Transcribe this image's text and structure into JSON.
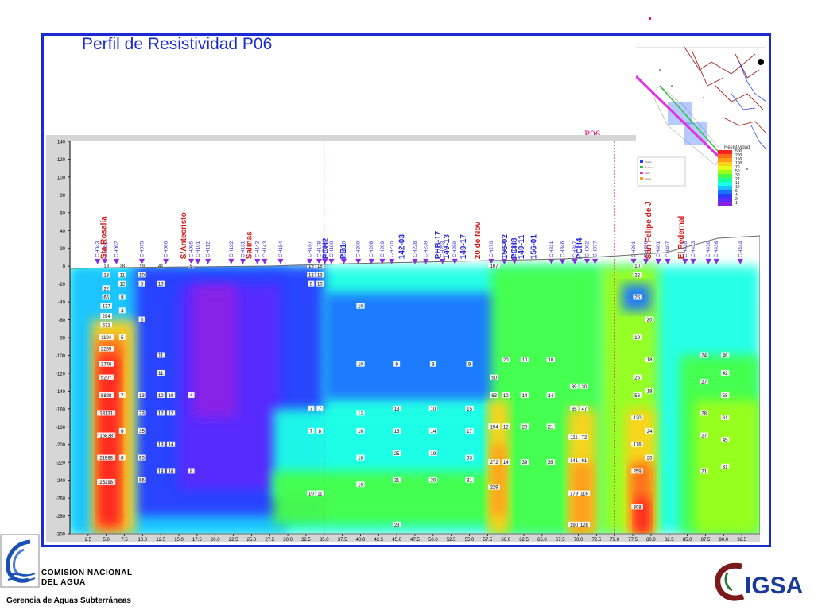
{
  "title": "Perfil de Resistividad P06",
  "profile_label": "P06",
  "footer": {
    "org_line1": "COMISION NACIONAL",
    "org_line2": "DEL  AGUA",
    "department": "Gerencia de Aguas Subterráneas",
    "partner_logo_text": "IGSA"
  },
  "legend": {
    "title": "Resistividad",
    "items": [
      "500",
      "200",
      "150",
      "100",
      "70",
      "50",
      "30",
      "22",
      "15",
      "10",
      "6",
      "4",
      "2",
      "1"
    ],
    "colors": [
      "#ff2020",
      "#ff6b1a",
      "#ff9d1a",
      "#ffd21a",
      "#e6ff1a",
      "#9cff1a",
      "#46ff4a",
      "#1aff9c",
      "#1affe6",
      "#1ac2ff",
      "#1a74ff",
      "#2a3dff",
      "#5a2bff",
      "#8a20e6"
    ]
  },
  "colors": {
    "frame": "#1a2bd6",
    "well_marker": "#8a2be2",
    "well_label": "#3a2bd6",
    "place_label": "#e0197d"
  },
  "chart_data": {
    "type": "heatmap",
    "xlabel": "",
    "ylabel": "",
    "xlim": [
      0,
      95
    ],
    "ylim": [
      -300,
      140
    ],
    "x_ticks": [
      "2.5",
      "5.0",
      "7.5",
      "10.0",
      "12.5",
      "15.0",
      "17.5",
      "20.0",
      "22.5",
      "25.0",
      "27.5",
      "30.0",
      "32.5",
      "35.0",
      "37.5",
      "40.0",
      "42.5",
      "45.0",
      "47.5",
      "50.0",
      "52.5",
      "55.0",
      "57.5",
      "60.0",
      "62.5",
      "65.0",
      "67.5",
      "70.0",
      "72.5",
      "75.0",
      "77.5",
      "80.0",
      "82.5",
      "85.0",
      "87.5",
      "90.0",
      "92.5"
    ],
    "y_ticks": [
      "140",
      "120",
      "100",
      "80",
      "60",
      "40",
      "20",
      "0",
      "-20",
      "-40",
      "-60",
      "-80",
      "-100",
      "-120",
      "-140",
      "-160",
      "-180",
      "-200",
      "-220",
      "-240",
      "-260",
      "-280",
      "-300"
    ],
    "place_labels": [
      {
        "text": "Sta Rosalía",
        "x": 5.0
      },
      {
        "text": "S/Antecristo",
        "x": 16.0
      },
      {
        "text": "Salinas",
        "x": 25.0
      },
      {
        "text": "PCH2",
        "x": 35.5
      },
      {
        "text": "PB1",
        "x": 38.0
      },
      {
        "text": "142-03",
        "x": 46.0
      },
      {
        "text": "PHB-17",
        "x": 51.0
      },
      {
        "text": "149-13",
        "x": 52.2
      },
      {
        "text": "149-17",
        "x": 54.5
      },
      {
        "text": "20 de Nov",
        "x": 56.5
      },
      {
        "text": "156-02",
        "x": 60.2
      },
      {
        "text": "PCH8",
        "x": 61.5
      },
      {
        "text": "149-11",
        "x": 62.5
      },
      {
        "text": "156-01",
        "x": 64.2
      },
      {
        "text": "PCH4",
        "x": 70.5
      },
      {
        "text": "San Felipe de J",
        "x": 80.0
      },
      {
        "text": "El Pedernal",
        "x": 84.5
      }
    ],
    "vertical_lines_x": [
      35.0,
      75.0
    ],
    "wells": [
      {
        "name": "CH043",
        "x": 3.8
      },
      {
        "name": "CH052",
        "x": 4.8
      },
      {
        "name": "CH062",
        "x": 6.4
      },
      {
        "name": "CH075",
        "x": 9.9
      },
      {
        "name": "CH086",
        "x": 13.2
      },
      {
        "name": "CH095",
        "x": 16.7
      },
      {
        "name": "CH101",
        "x": 17.6
      },
      {
        "name": "CH112",
        "x": 19.0
      },
      {
        "name": "CH122",
        "x": 22.2
      },
      {
        "name": "CH131",
        "x": 23.8
      },
      {
        "name": "CH142",
        "x": 25.8
      },
      {
        "name": "CH143",
        "x": 26.8
      },
      {
        "name": "CH154",
        "x": 29.0
      },
      {
        "name": "CH167",
        "x": 33.0
      },
      {
        "name": "CH178",
        "x": 34.3
      },
      {
        "name": "CH179",
        "x": 35.1
      },
      {
        "name": "CH180",
        "x": 36.0
      },
      {
        "name": "CH190",
        "x": 37.7
      },
      {
        "name": "CH200",
        "x": 39.7
      },
      {
        "name": "CH208",
        "x": 41.5
      },
      {
        "name": "CH209",
        "x": 43.0
      },
      {
        "name": "CH215",
        "x": 44.3
      },
      {
        "name": "CH228",
        "x": 47.5
      },
      {
        "name": "CH239",
        "x": 49.0
      },
      {
        "name": "CH253",
        "x": 51.3
      },
      {
        "name": "CH259",
        "x": 53.0
      },
      {
        "name": "CH270",
        "x": 58.0
      },
      {
        "name": "CH279",
        "x": 59.8
      },
      {
        "name": "CH286",
        "x": 61.2
      },
      {
        "name": "CH331",
        "x": 66.3
      },
      {
        "name": "CH346",
        "x": 67.8
      },
      {
        "name": "CH347",
        "x": 69.5
      },
      {
        "name": "CH362",
        "x": 71.2
      },
      {
        "name": "CH377",
        "x": 72.3
      },
      {
        "name": "CH391",
        "x": 77.6
      },
      {
        "name": "CH396",
        "x": 79.3
      },
      {
        "name": "CH401",
        "x": 81.0
      },
      {
        "name": "CH407",
        "x": 82.3
      },
      {
        "name": "CH418",
        "x": 84.7
      },
      {
        "name": "CH423",
        "x": 85.8
      },
      {
        "name": "CH430",
        "x": 87.9
      },
      {
        "name": "CH436",
        "x": 89.0
      },
      {
        "name": "CH444",
        "x": 92.3
      }
    ],
    "columns": [
      {
        "x": 5.0,
        "values": [
          {
            "d": 0,
            "v": "18"
          },
          {
            "d": -10,
            "v": "13"
          },
          {
            "d": -25,
            "v": "22"
          },
          {
            "d": -35,
            "v": "65"
          },
          {
            "d": -45,
            "v": "137"
          },
          {
            "d": -56,
            "v": "294"
          },
          {
            "d": -66,
            "v": "631"
          },
          {
            "d": -80,
            "v": "1194"
          },
          {
            "d": -93,
            "v": "2259"
          },
          {
            "d": -110,
            "v": "3746"
          },
          {
            "d": -125,
            "v": "5207"
          },
          {
            "d": -145,
            "v": "8828"
          },
          {
            "d": -165,
            "v": "13131"
          },
          {
            "d": -190,
            "v": "16828"
          },
          {
            "d": -215,
            "v": "21566"
          },
          {
            "d": -242,
            "v": "25298"
          }
        ]
      },
      {
        "x": 7.2,
        "values": [
          {
            "d": 0,
            "v": "28"
          },
          {
            "d": -10,
            "v": "11"
          },
          {
            "d": -20,
            "v": "12"
          },
          {
            "d": -35,
            "v": "9"
          },
          {
            "d": -50,
            "v": "4"
          },
          {
            "d": -80,
            "v": "5"
          },
          {
            "d": -145,
            "v": "7"
          },
          {
            "d": -185,
            "v": "6"
          },
          {
            "d": -215,
            "v": "8"
          }
        ]
      },
      {
        "x": 9.9,
        "values": [
          {
            "d": 0,
            "v": "19"
          },
          {
            "d": -10,
            "v": "10"
          },
          {
            "d": -20,
            "v": "8"
          },
          {
            "d": -60,
            "v": "5"
          },
          {
            "d": -145,
            "v": "13"
          },
          {
            "d": -165,
            "v": "23"
          },
          {
            "d": -185,
            "v": "35"
          },
          {
            "d": -215,
            "v": "53"
          },
          {
            "d": -240,
            "v": "66"
          }
        ]
      },
      {
        "x": 12.5,
        "values": [
          {
            "d": 0,
            "v": "41"
          },
          {
            "d": -20,
            "v": "10"
          },
          {
            "d": -100,
            "v": "11"
          },
          {
            "d": -120,
            "v": "11"
          },
          {
            "d": -145,
            "v": "10"
          },
          {
            "d": -165,
            "v": "12"
          },
          {
            "d": -200,
            "v": "13"
          },
          {
            "d": -230,
            "v": "14"
          }
        ]
      },
      {
        "x": 13.9,
        "values": [
          {
            "d": -145,
            "v": "10"
          },
          {
            "d": -165,
            "v": "12"
          },
          {
            "d": -200,
            "v": "14"
          },
          {
            "d": -230,
            "v": "16"
          }
        ]
      },
      {
        "x": 16.7,
        "values": [
          {
            "d": 0,
            "v": "5"
          },
          {
            "d": -145,
            "v": "4"
          },
          {
            "d": -230,
            "v": "8"
          }
        ]
      },
      {
        "x": 33.2,
        "values": [
          {
            "d": 0,
            "v": "15"
          },
          {
            "d": -10,
            "v": "12"
          },
          {
            "d": -20,
            "v": "9"
          },
          {
            "d": -160,
            "v": "7"
          },
          {
            "d": -185,
            "v": "7"
          },
          {
            "d": -255,
            "v": "10"
          }
        ]
      },
      {
        "x": 34.4,
        "values": [
          {
            "d": 0,
            "v": "16"
          },
          {
            "d": -10,
            "v": "13"
          },
          {
            "d": -20,
            "v": "10"
          },
          {
            "d": -160,
            "v": "7"
          },
          {
            "d": -185,
            "v": "8"
          },
          {
            "d": -255,
            "v": "11"
          }
        ]
      },
      {
        "x": 40.0,
        "values": [
          {
            "d": -45,
            "v": "10"
          },
          {
            "d": -110,
            "v": "10"
          },
          {
            "d": -165,
            "v": "13"
          },
          {
            "d": -185,
            "v": "16"
          },
          {
            "d": -215,
            "v": "18"
          },
          {
            "d": -245,
            "v": "19"
          }
        ]
      },
      {
        "x": 45.0,
        "values": [
          {
            "d": -110,
            "v": "9"
          },
          {
            "d": -160,
            "v": "13"
          },
          {
            "d": -185,
            "v": "16"
          },
          {
            "d": -210,
            "v": "25"
          },
          {
            "d": -240,
            "v": "21"
          },
          {
            "d": -290,
            "v": "23"
          }
        ]
      },
      {
        "x": 50.0,
        "values": [
          {
            "d": -110,
            "v": "9"
          },
          {
            "d": -160,
            "v": "10"
          },
          {
            "d": -185,
            "v": "14"
          },
          {
            "d": -210,
            "v": "19"
          },
          {
            "d": -240,
            "v": "20"
          }
        ]
      },
      {
        "x": 55.0,
        "values": [
          {
            "d": -110,
            "v": "9"
          },
          {
            "d": -160,
            "v": "15"
          },
          {
            "d": -185,
            "v": "17"
          },
          {
            "d": -215,
            "v": "33"
          },
          {
            "d": -240,
            "v": "31"
          }
        ]
      },
      {
        "x": 58.4,
        "values": [
          {
            "d": 0,
            "v": "107"
          },
          {
            "d": -125,
            "v": "50"
          },
          {
            "d": -145,
            "v": "63"
          },
          {
            "d": -180,
            "v": "194"
          },
          {
            "d": -220,
            "v": "272"
          },
          {
            "d": -248,
            "v": "229"
          }
        ]
      },
      {
        "x": 60.0,
        "values": [
          {
            "d": -105,
            "v": "20"
          },
          {
            "d": -145,
            "v": "10"
          },
          {
            "d": -180,
            "v": "12"
          },
          {
            "d": -220,
            "v": "14"
          }
        ]
      },
      {
        "x": 62.6,
        "values": [
          {
            "d": -105,
            "v": "10"
          },
          {
            "d": -145,
            "v": "14"
          },
          {
            "d": -180,
            "v": "20"
          },
          {
            "d": -220,
            "v": "39"
          }
        ]
      },
      {
        "x": 66.2,
        "values": [
          {
            "d": -105,
            "v": "10"
          },
          {
            "d": -145,
            "v": "14"
          },
          {
            "d": -180,
            "v": "21"
          },
          {
            "d": -220,
            "v": "35"
          }
        ]
      },
      {
        "x": 69.4,
        "values": [
          {
            "d": -135,
            "v": "39"
          },
          {
            "d": -160,
            "v": "65"
          },
          {
            "d": -192,
            "v": "111"
          },
          {
            "d": -218,
            "v": "141"
          },
          {
            "d": -255,
            "v": "179"
          },
          {
            "d": -290,
            "v": "190"
          }
        ]
      },
      {
        "x": 70.8,
        "values": [
          {
            "d": -135,
            "v": "30"
          },
          {
            "d": -160,
            "v": "47"
          },
          {
            "d": -192,
            "v": "72"
          },
          {
            "d": -218,
            "v": "91"
          },
          {
            "d": -255,
            "v": "116"
          },
          {
            "d": -290,
            "v": "128"
          }
        ]
      },
      {
        "x": 78.1,
        "values": [
          {
            "d": 0,
            "v": "10"
          },
          {
            "d": -10,
            "v": "22"
          },
          {
            "d": -35,
            "v": "26"
          },
          {
            "d": -80,
            "v": "19"
          },
          {
            "d": -125,
            "v": "26"
          },
          {
            "d": -145,
            "v": "56"
          },
          {
            "d": -170,
            "v": "120"
          },
          {
            "d": -200,
            "v": "176"
          },
          {
            "d": -230,
            "v": "259"
          },
          {
            "d": -270,
            "v": "308"
          }
        ]
      },
      {
        "x": 79.8,
        "values": [
          {
            "d": -60,
            "v": "20"
          },
          {
            "d": -105,
            "v": "18"
          },
          {
            "d": -140,
            "v": "18"
          },
          {
            "d": -185,
            "v": "24"
          },
          {
            "d": -215,
            "v": "28"
          }
        ]
      },
      {
        "x": 87.3,
        "values": [
          {
            "d": -100,
            "v": "24"
          },
          {
            "d": -130,
            "v": "27"
          },
          {
            "d": -165,
            "v": "28"
          },
          {
            "d": -190,
            "v": "27"
          },
          {
            "d": -230,
            "v": "21"
          }
        ]
      },
      {
        "x": 90.2,
        "values": [
          {
            "d": -100,
            "v": "46"
          },
          {
            "d": -120,
            "v": "42"
          },
          {
            "d": -145,
            "v": "58"
          },
          {
            "d": -170,
            "v": "61"
          },
          {
            "d": -195,
            "v": "45"
          },
          {
            "d": -225,
            "v": "31"
          }
        ]
      }
    ]
  }
}
